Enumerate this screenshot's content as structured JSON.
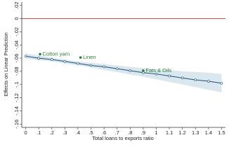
{
  "chart_data": {
    "type": "line",
    "x_label": "Total loans to exports ratio",
    "y_label": "Effects on Linear Prediction",
    "x": [
      0,
      0.1,
      0.2,
      0.3,
      0.4,
      0.5,
      0.6,
      0.7,
      0.8,
      0.9,
      1,
      1.1,
      1.2,
      1.3,
      1.4,
      1.5
    ],
    "series": [
      {
        "color": "#1f4e79",
        "values": [
          -0.057,
          -0.06,
          -0.062,
          -0.065,
          -0.068,
          -0.071,
          -0.073,
          -0.076,
          -0.079,
          -0.082,
          -0.084,
          -0.087,
          -0.09,
          -0.093,
          -0.095,
          -0.098
        ]
      }
    ],
    "band": {
      "color": "#dbe7ef",
      "lower": [
        -0.061,
        -0.063,
        -0.065,
        -0.068,
        -0.071,
        -0.074,
        -0.078,
        -0.081,
        -0.085,
        -0.088,
        -0.092,
        -0.096,
        -0.1,
        -0.104,
        -0.108,
        -0.112
      ],
      "upper": [
        -0.053,
        -0.056,
        -0.059,
        -0.062,
        -0.065,
        -0.067,
        -0.069,
        -0.071,
        -0.073,
        -0.075,
        -0.077,
        -0.078,
        -0.08,
        -0.081,
        -0.082,
        -0.084
      ]
    },
    "annotations": [
      {
        "text": "Cotton yarn",
        "x": 0.11,
        "y": -0.054,
        "color": "#2e7d32"
      },
      {
        "text": "Linen",
        "x": 0.42,
        "y": -0.059,
        "color": "#2e7d32"
      },
      {
        "text": "Fats & Oils",
        "x": 0.9,
        "y": -0.079,
        "color": "#2e7d32"
      }
    ],
    "reference_line": {
      "y": 0,
      "color": "#d9302c"
    },
    "xlim": [
      -0.03,
      1.53
    ],
    "ylim": [
      -0.165,
      0.025
    ],
    "xticks": [
      0,
      {
        "value": 0.1,
        "label": ".1"
      },
      {
        "value": 0.2,
        "label": ".2"
      },
      {
        "value": 0.3,
        "label": ".3"
      },
      {
        "value": 0.4,
        "label": ".4"
      },
      {
        "value": 0.5,
        "label": ".5"
      },
      {
        "value": 0.6,
        "label": ".6"
      },
      {
        "value": 0.7,
        "label": ".7"
      },
      {
        "value": 0.8,
        "label": ".8"
      },
      {
        "value": 0.9,
        "label": ".9"
      },
      1,
      1.1,
      1.2,
      1.3,
      1.4,
      1.5
    ],
    "yticks": [
      {
        "value": 0.02,
        "label": ".02"
      },
      0,
      {
        "value": -0.02,
        "label": "-.02"
      },
      {
        "value": -0.04,
        "label": "-.04"
      },
      {
        "value": -0.06,
        "label": "-.06"
      },
      {
        "value": -0.08,
        "label": "-.08"
      },
      {
        "value": -0.1,
        "label": "-.1"
      },
      {
        "value": -0.12,
        "label": "-.12"
      },
      {
        "value": -0.14,
        "label": "-.14"
      },
      {
        "value": -0.16,
        "label": "-.16"
      }
    ],
    "grid": false
  }
}
